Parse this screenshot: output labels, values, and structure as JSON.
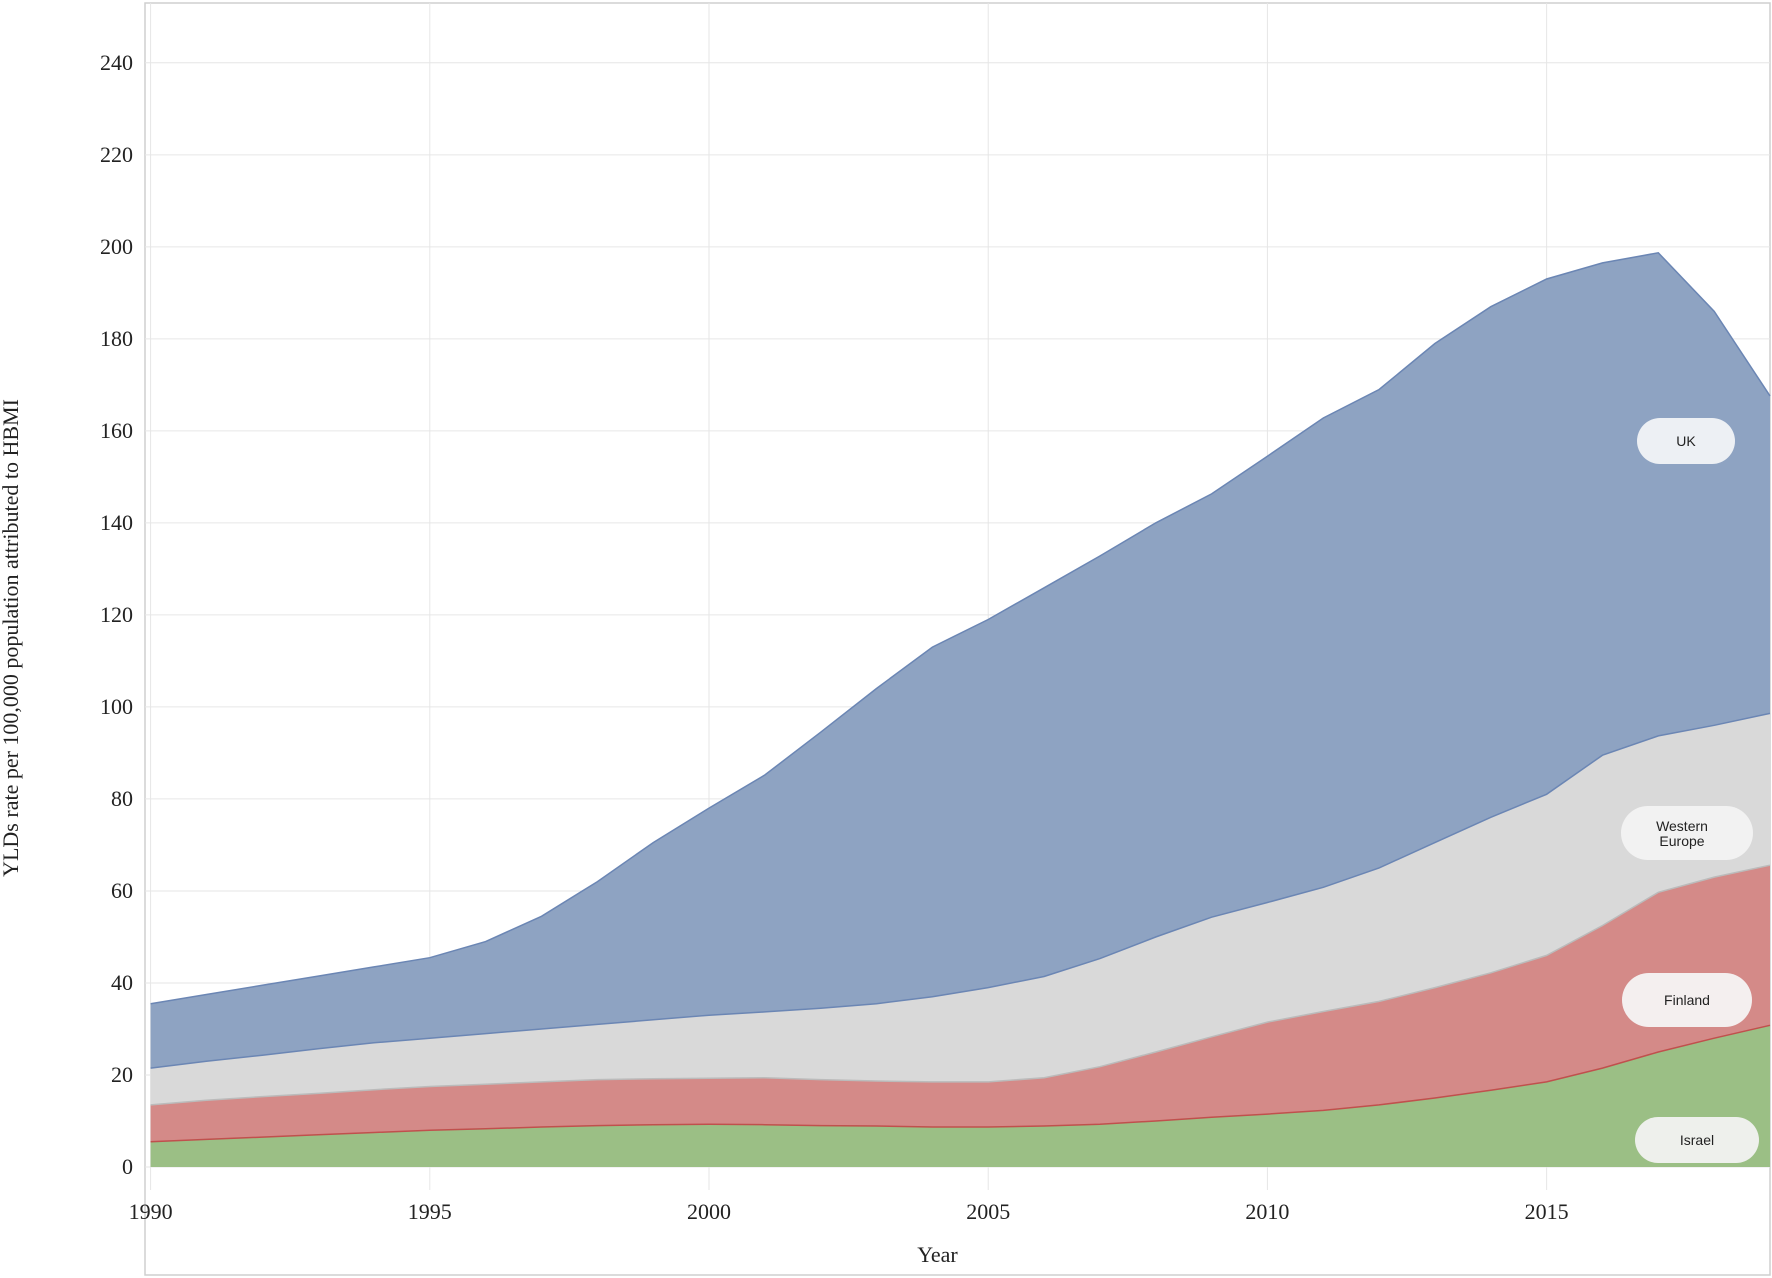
{
  "chart_data": {
    "type": "area",
    "stacked": true,
    "xlabel": "Year",
    "ylabel": "YLDs rate per 100,000 population attributed to HBMI",
    "xlim": [
      1989.9,
      2019
    ],
    "ylim": [
      -5,
      253
    ],
    "x_ticks": [
      1990,
      1995,
      2000,
      2005,
      2010,
      2015
    ],
    "y_ticks": [
      0,
      20,
      40,
      60,
      80,
      100,
      120,
      140,
      160,
      180,
      200,
      220,
      240
    ],
    "grid": true,
    "legend": "right",
    "x": [
      1990,
      1991,
      1992,
      1993,
      1994,
      1995,
      1996,
      1997,
      1998,
      1999,
      2000,
      2001,
      2002,
      2003,
      2004,
      2005,
      2006,
      2007,
      2008,
      2009,
      2010,
      2011,
      2012,
      2013,
      2014,
      2015,
      2016,
      2017,
      2018,
      2019
    ],
    "series": [
      {
        "name": "Israel",
        "color": "#9bbf85",
        "line_color": "#c0504d",
        "values": [
          5.5,
          6.0,
          6.5,
          7.0,
          7.5,
          8.0,
          8.3,
          8.7,
          9.0,
          9.2,
          9.3,
          9.2,
          9.0,
          8.9,
          8.7,
          8.7,
          8.9,
          9.3,
          10.0,
          10.8,
          11.5,
          12.3,
          13.5,
          15.0,
          16.7,
          18.5,
          21.5,
          25.0,
          28.0,
          30.8
        ]
      },
      {
        "name": "Finland",
        "color": "#d48a88",
        "line_color": "#bbbbbb",
        "values": [
          8.0,
          8.5,
          8.8,
          9.0,
          9.3,
          9.5,
          9.7,
          9.8,
          10.0,
          10.0,
          10.0,
          10.2,
          10.0,
          9.8,
          9.8,
          9.8,
          10.5,
          12.5,
          15.0,
          17.5,
          20.0,
          21.5,
          22.5,
          24.0,
          25.5,
          27.5,
          31.0,
          34.7,
          35.0,
          34.8
        ]
      },
      {
        "name": "Western Europe",
        "color": "#d9d9d9",
        "line_color": "#6b86b4",
        "values": [
          8.0,
          8.5,
          9.0,
          9.7,
          10.2,
          10.5,
          11.0,
          11.5,
          12.0,
          12.8,
          13.7,
          14.3,
          15.5,
          16.8,
          18.5,
          20.5,
          22.0,
          23.5,
          25.0,
          26.0,
          26.0,
          27.0,
          29.0,
          31.5,
          33.8,
          35.0,
          37.0,
          34.0,
          33.0,
          33.0
        ]
      },
      {
        "name": "UK",
        "color": "#8ea3c2",
        "line_color": "#6b86b4",
        "values": [
          14.0,
          14.5,
          15.2,
          15.8,
          16.5,
          17.5,
          20.0,
          24.5,
          31.0,
          38.5,
          45.0,
          51.5,
          60.0,
          68.5,
          76.0,
          80.0,
          84.5,
          87.5,
          90.0,
          92.0,
          97.0,
          102.0,
          104.0,
          108.5,
          111.0,
          112.0,
          107.0,
          105.0,
          90.0,
          69.0
        ]
      }
    ]
  }
}
